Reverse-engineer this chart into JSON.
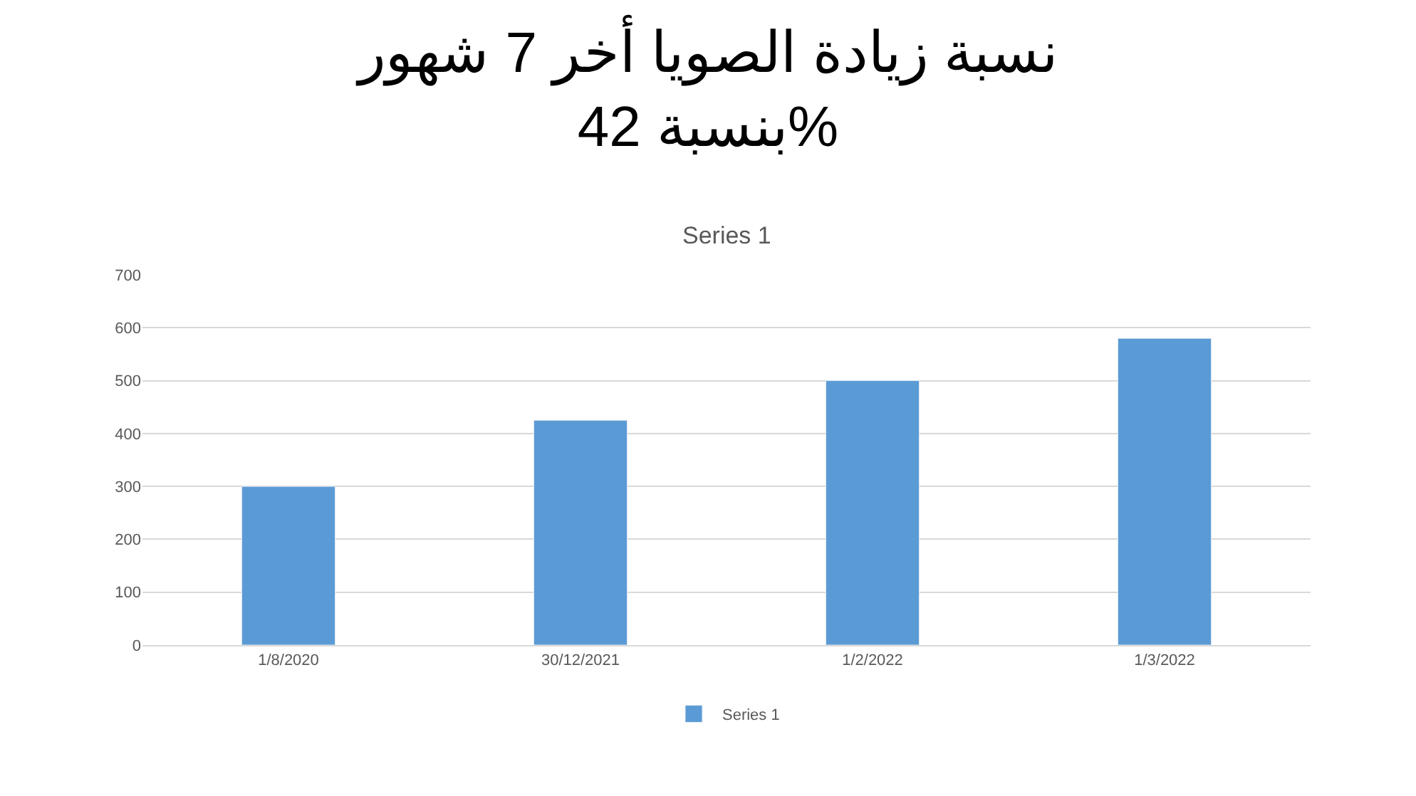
{
  "chart_data": {
    "type": "bar",
    "title": "نسبة زيادة الصويا أخر 7 شهور\nبنسبة 42%",
    "subtitle": "Series 1",
    "categories": [
      "1/8/2020",
      "30/12/2021",
      "1/2/2022",
      "1/3/2022"
    ],
    "series": [
      {
        "name": "Series 1",
        "color": "#5b9bd5",
        "values": [
          300,
          425,
          500,
          580
        ]
      }
    ],
    "ylim": [
      0,
      700
    ],
    "yticks": [
      0,
      100,
      200,
      300,
      400,
      500,
      600,
      700
    ],
    "grid": "y",
    "legend": "bottom"
  }
}
